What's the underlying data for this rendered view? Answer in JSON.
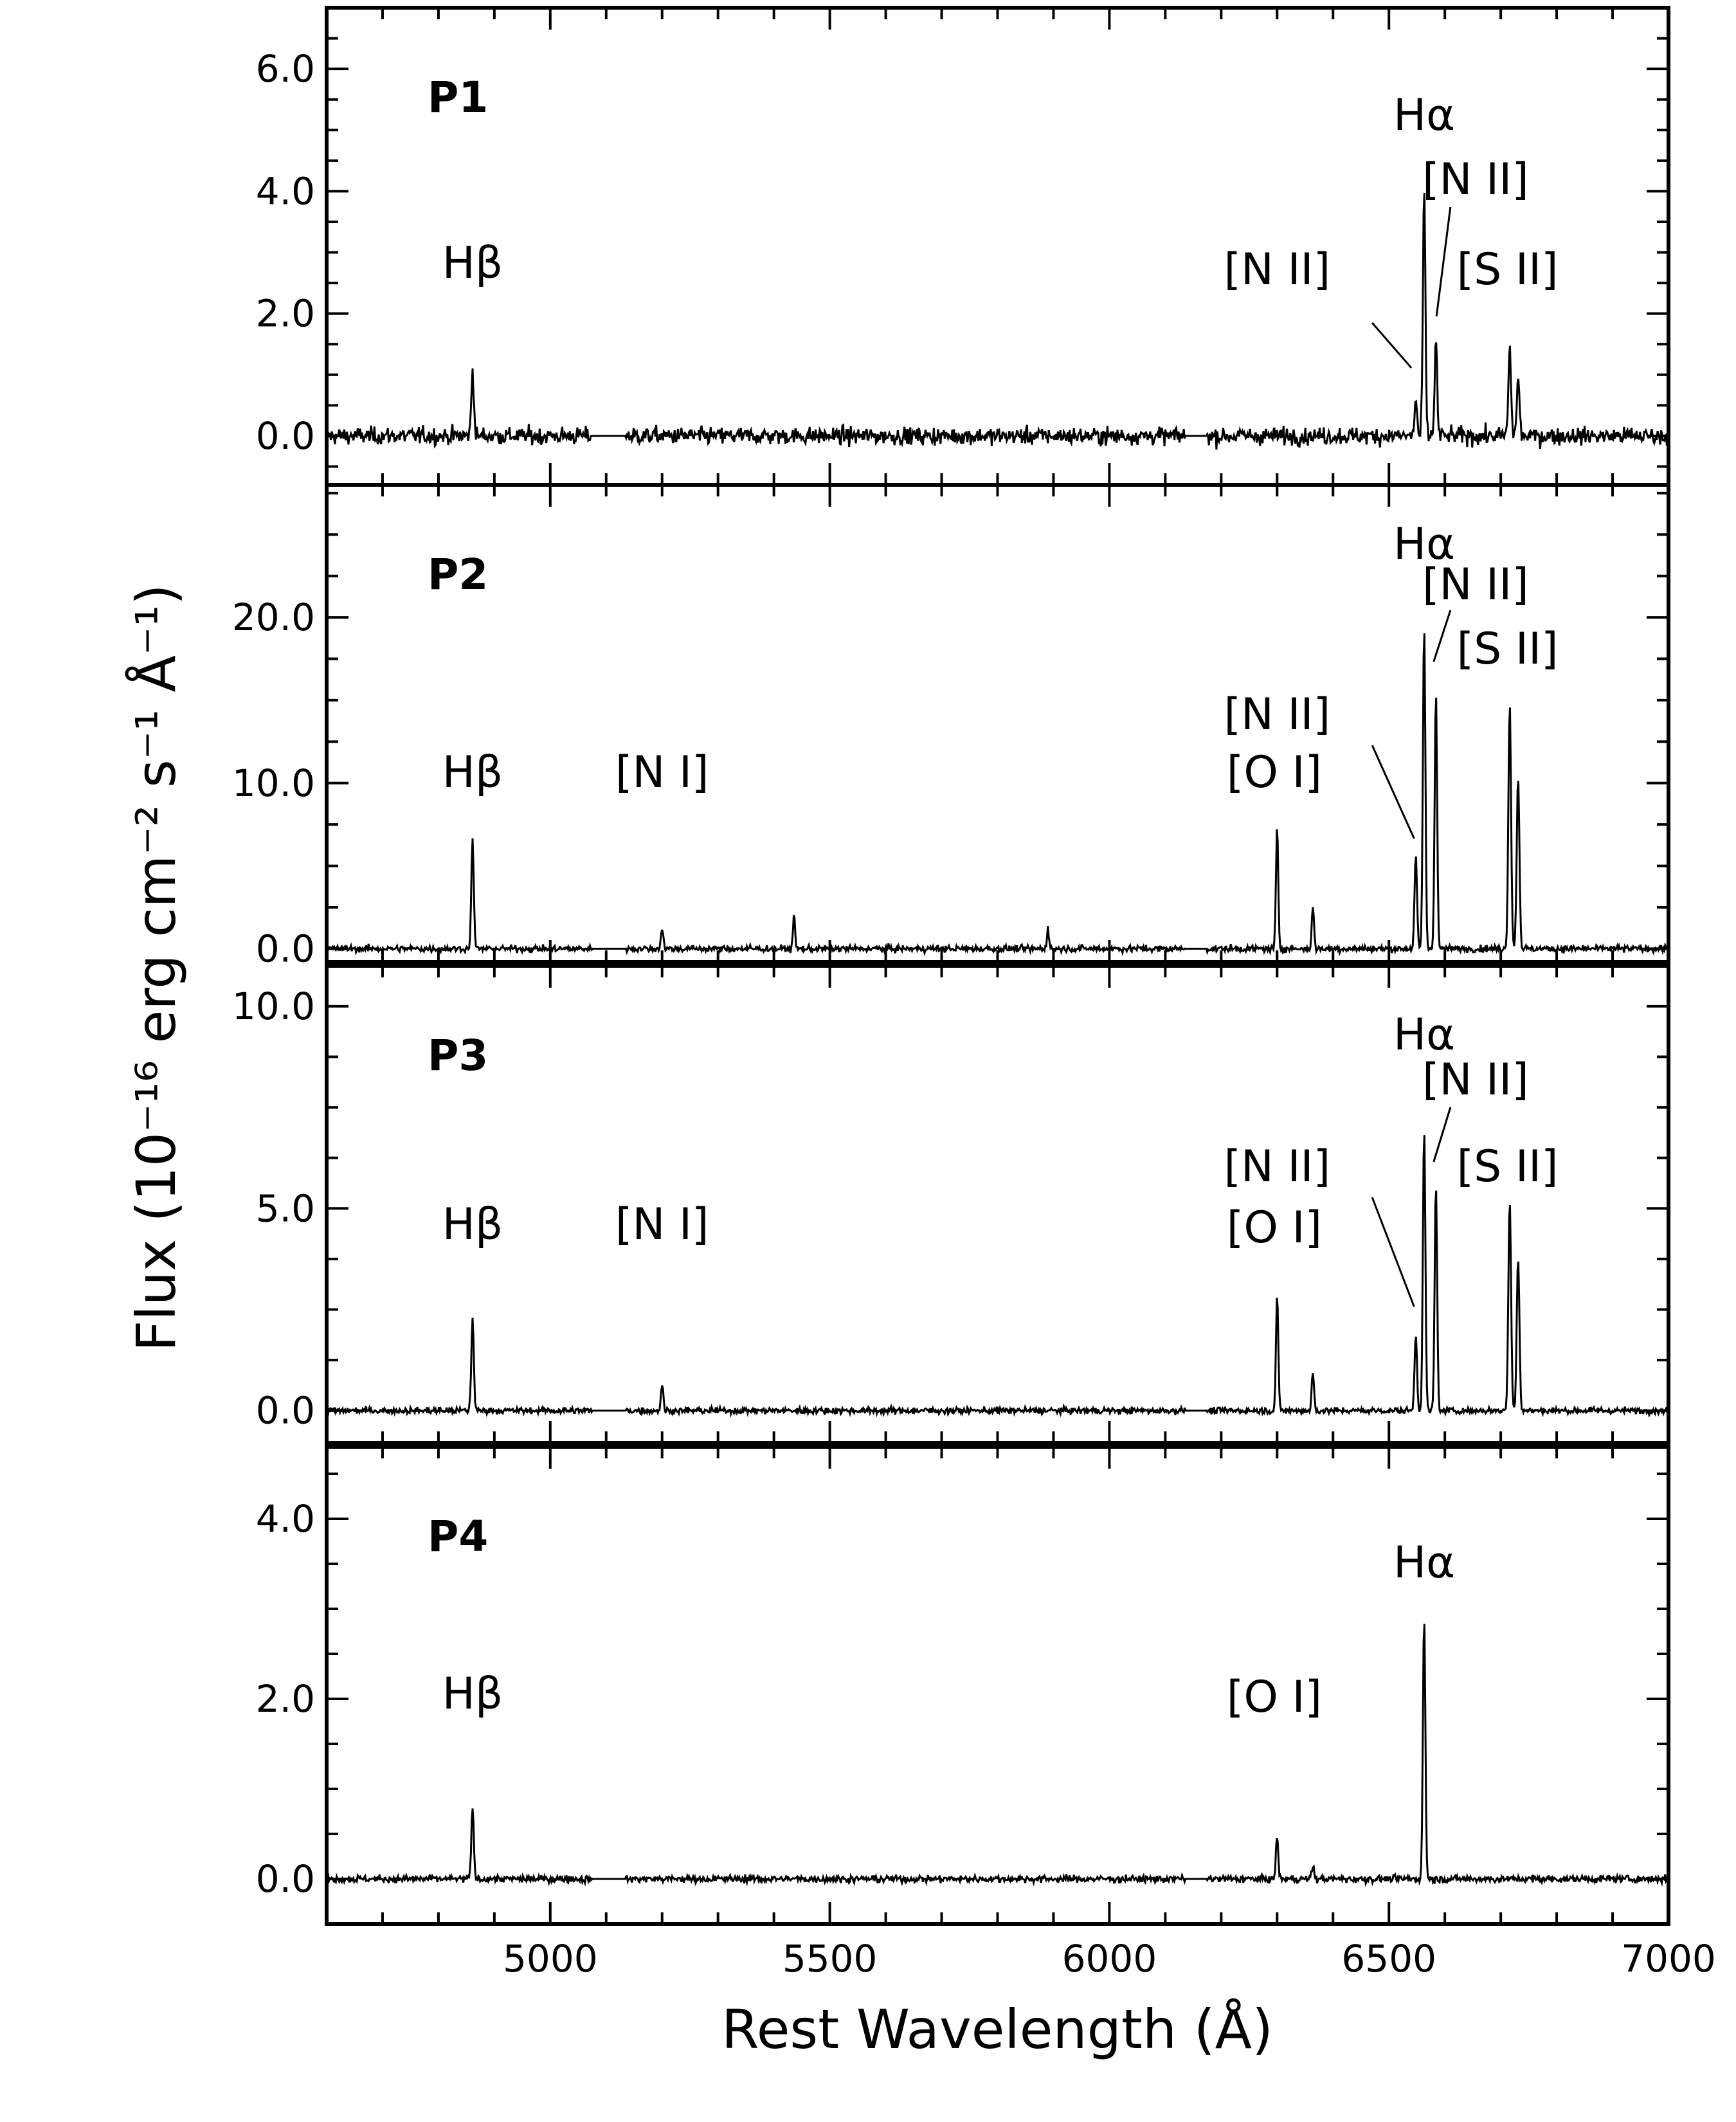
{
  "chart_data": {
    "type": "line",
    "xlabel": "Rest Wavelength (Å)",
    "ylabel": "Flux (10⁻¹⁶ erg cm⁻² s⁻¹ Å⁻¹)",
    "xlim": [
      4600,
      7000
    ],
    "xticks": [
      5000,
      5500,
      6000,
      6500,
      7000
    ],
    "xtick_labels": [
      "5000",
      "5500",
      "6000",
      "6500",
      "7000"
    ],
    "grid": false,
    "color": "#000000",
    "panels": [
      {
        "label": "P1",
        "ylim": [
          -0.8,
          7.0
        ],
        "yticks": [
          0,
          2,
          4,
          6
        ],
        "ytick_labels": [
          "0.0",
          "2.0",
          "4.0",
          "6.0"
        ],
        "noise": 0.18,
        "lines": [
          {
            "name": "Hβ",
            "x": 4861,
            "peak": 1.1,
            "width": 2.2
          },
          {
            "name": "[N II]",
            "x": 6548,
            "peak": 0.6,
            "width": 2.2
          },
          {
            "name": "Hα",
            "x": 6563,
            "peak": 4.0,
            "width": 2.2
          },
          {
            "name": "[N II]",
            "x": 6584,
            "peak": 1.6,
            "width": 2.2
          },
          {
            "name": "[S II]",
            "x": 6716,
            "peak": 1.4,
            "width": 2.4
          },
          {
            "name": "[S II]",
            "x": 6731,
            "peak": 0.95,
            "width": 2.4
          }
        ],
        "annotations": [
          "Hβ",
          "Hα",
          "[N II]",
          "[N II]",
          "[S II]"
        ]
      },
      {
        "label": "P2",
        "ylim": [
          -0.8,
          28.0
        ],
        "yticks": [
          0,
          10,
          20
        ],
        "ytick_labels": [
          "0.0",
          "10.0",
          "20.0"
        ],
        "noise": 0.25,
        "lines": [
          {
            "name": "Hβ",
            "x": 4861,
            "peak": 6.5,
            "width": 2.2
          },
          {
            "name": "[N I]",
            "x": 5200,
            "peak": 1.2,
            "width": 2.2
          },
          {
            "name": "",
            "x": 5436,
            "peak": 2.3,
            "width": 1.6
          },
          {
            "name": "",
            "x": 5890,
            "peak": 1.3,
            "width": 1.8
          },
          {
            "name": "[O I]",
            "x": 6300,
            "peak": 7.3,
            "width": 2.0
          },
          {
            "name": "[O I]",
            "x": 6364,
            "peak": 2.5,
            "width": 2.0
          },
          {
            "name": "[N II]",
            "x": 6548,
            "peak": 5.6,
            "width": 2.2
          },
          {
            "name": "Hα",
            "x": 6563,
            "peak": 19.5,
            "width": 2.2
          },
          {
            "name": "[N II]",
            "x": 6584,
            "peak": 15.6,
            "width": 2.2
          },
          {
            "name": "[S II]",
            "x": 6716,
            "peak": 14.8,
            "width": 2.4
          },
          {
            "name": "[S II]",
            "x": 6731,
            "peak": 10.4,
            "width": 2.4
          }
        ],
        "annotations": [
          "Hβ",
          "[N I]",
          "[O I]",
          "Hα",
          "[N II]",
          "[N II]",
          "[S II]"
        ]
      },
      {
        "label": "P3",
        "ylim": [
          -0.8,
          11.0
        ],
        "yticks": [
          0,
          5,
          10
        ],
        "ytick_labels": [
          "0.0",
          "5.0",
          "10.0"
        ],
        "noise": 0.1,
        "lines": [
          {
            "name": "Hβ",
            "x": 4861,
            "peak": 2.3,
            "width": 2.2
          },
          {
            "name": "[N I]",
            "x": 5200,
            "peak": 0.6,
            "width": 2.2
          },
          {
            "name": "[O I]",
            "x": 6300,
            "peak": 2.9,
            "width": 2.0
          },
          {
            "name": "[O I]",
            "x": 6364,
            "peak": 0.95,
            "width": 2.0
          },
          {
            "name": "[N II]",
            "x": 6548,
            "peak": 1.9,
            "width": 2.2
          },
          {
            "name": "Hα",
            "x": 6563,
            "peak": 7.0,
            "width": 2.2
          },
          {
            "name": "[N II]",
            "x": 6584,
            "peak": 5.6,
            "width": 2.2
          },
          {
            "name": "[S II]",
            "x": 6716,
            "peak": 5.2,
            "width": 2.4
          },
          {
            "name": "[S II]",
            "x": 6731,
            "peak": 3.8,
            "width": 2.4
          }
        ],
        "annotations": [
          "Hβ",
          "[N I]",
          "[O I]",
          "Hα",
          "[N II]",
          "[N II]",
          "[S II]"
        ]
      },
      {
        "label": "P4",
        "ylim": [
          -0.5,
          4.8
        ],
        "yticks": [
          0,
          2,
          4
        ],
        "ytick_labels": [
          "0.0",
          "2.0",
          "4.0"
        ],
        "noise": 0.05,
        "lines": [
          {
            "name": "Hβ",
            "x": 4861,
            "peak": 0.78,
            "width": 2.2
          },
          {
            "name": "[O I]",
            "x": 6300,
            "peak": 0.48,
            "width": 2.0
          },
          {
            "name": "[O I]",
            "x": 6364,
            "peak": 0.15,
            "width": 2.0
          },
          {
            "name": "Hα",
            "x": 6563,
            "peak": 2.9,
            "width": 2.2
          }
        ],
        "annotations": [
          "Hβ",
          "[O I]",
          "Hα"
        ]
      }
    ]
  }
}
